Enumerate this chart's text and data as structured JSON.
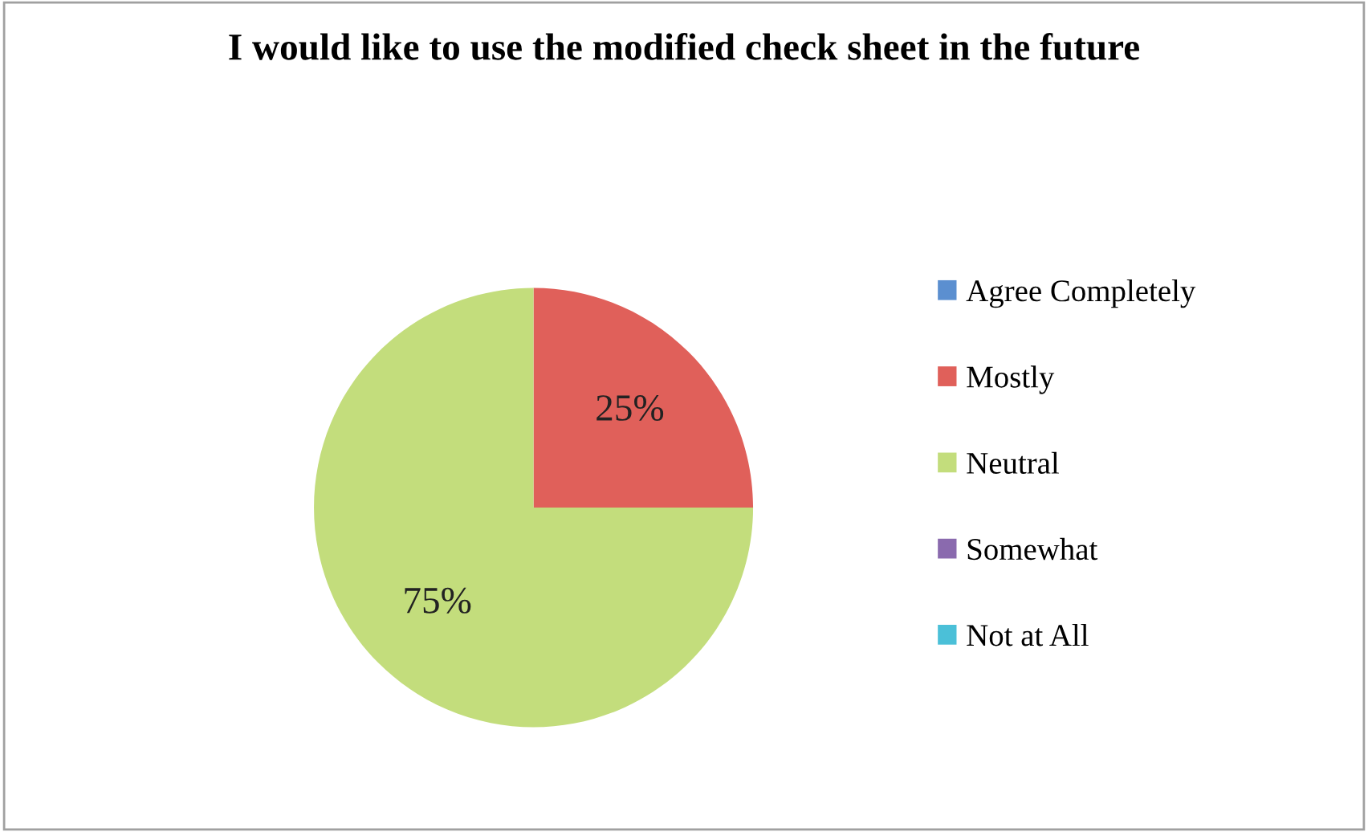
{
  "chart_data": {
    "type": "pie",
    "title": "I would like to use the modified check sheet in the future",
    "categories": [
      "Agree Completely",
      "Mostly",
      "Neutral",
      "Somewhat",
      "Not at All"
    ],
    "values": [
      0,
      25,
      75,
      0,
      0
    ],
    "colors": [
      "#5b8fd0",
      "#e0605a",
      "#c3dd7c",
      "#8a6aae",
      "#4bc0d8"
    ],
    "value_labels": [
      null,
      "25%",
      "75%",
      null,
      null
    ],
    "legend": "right"
  }
}
